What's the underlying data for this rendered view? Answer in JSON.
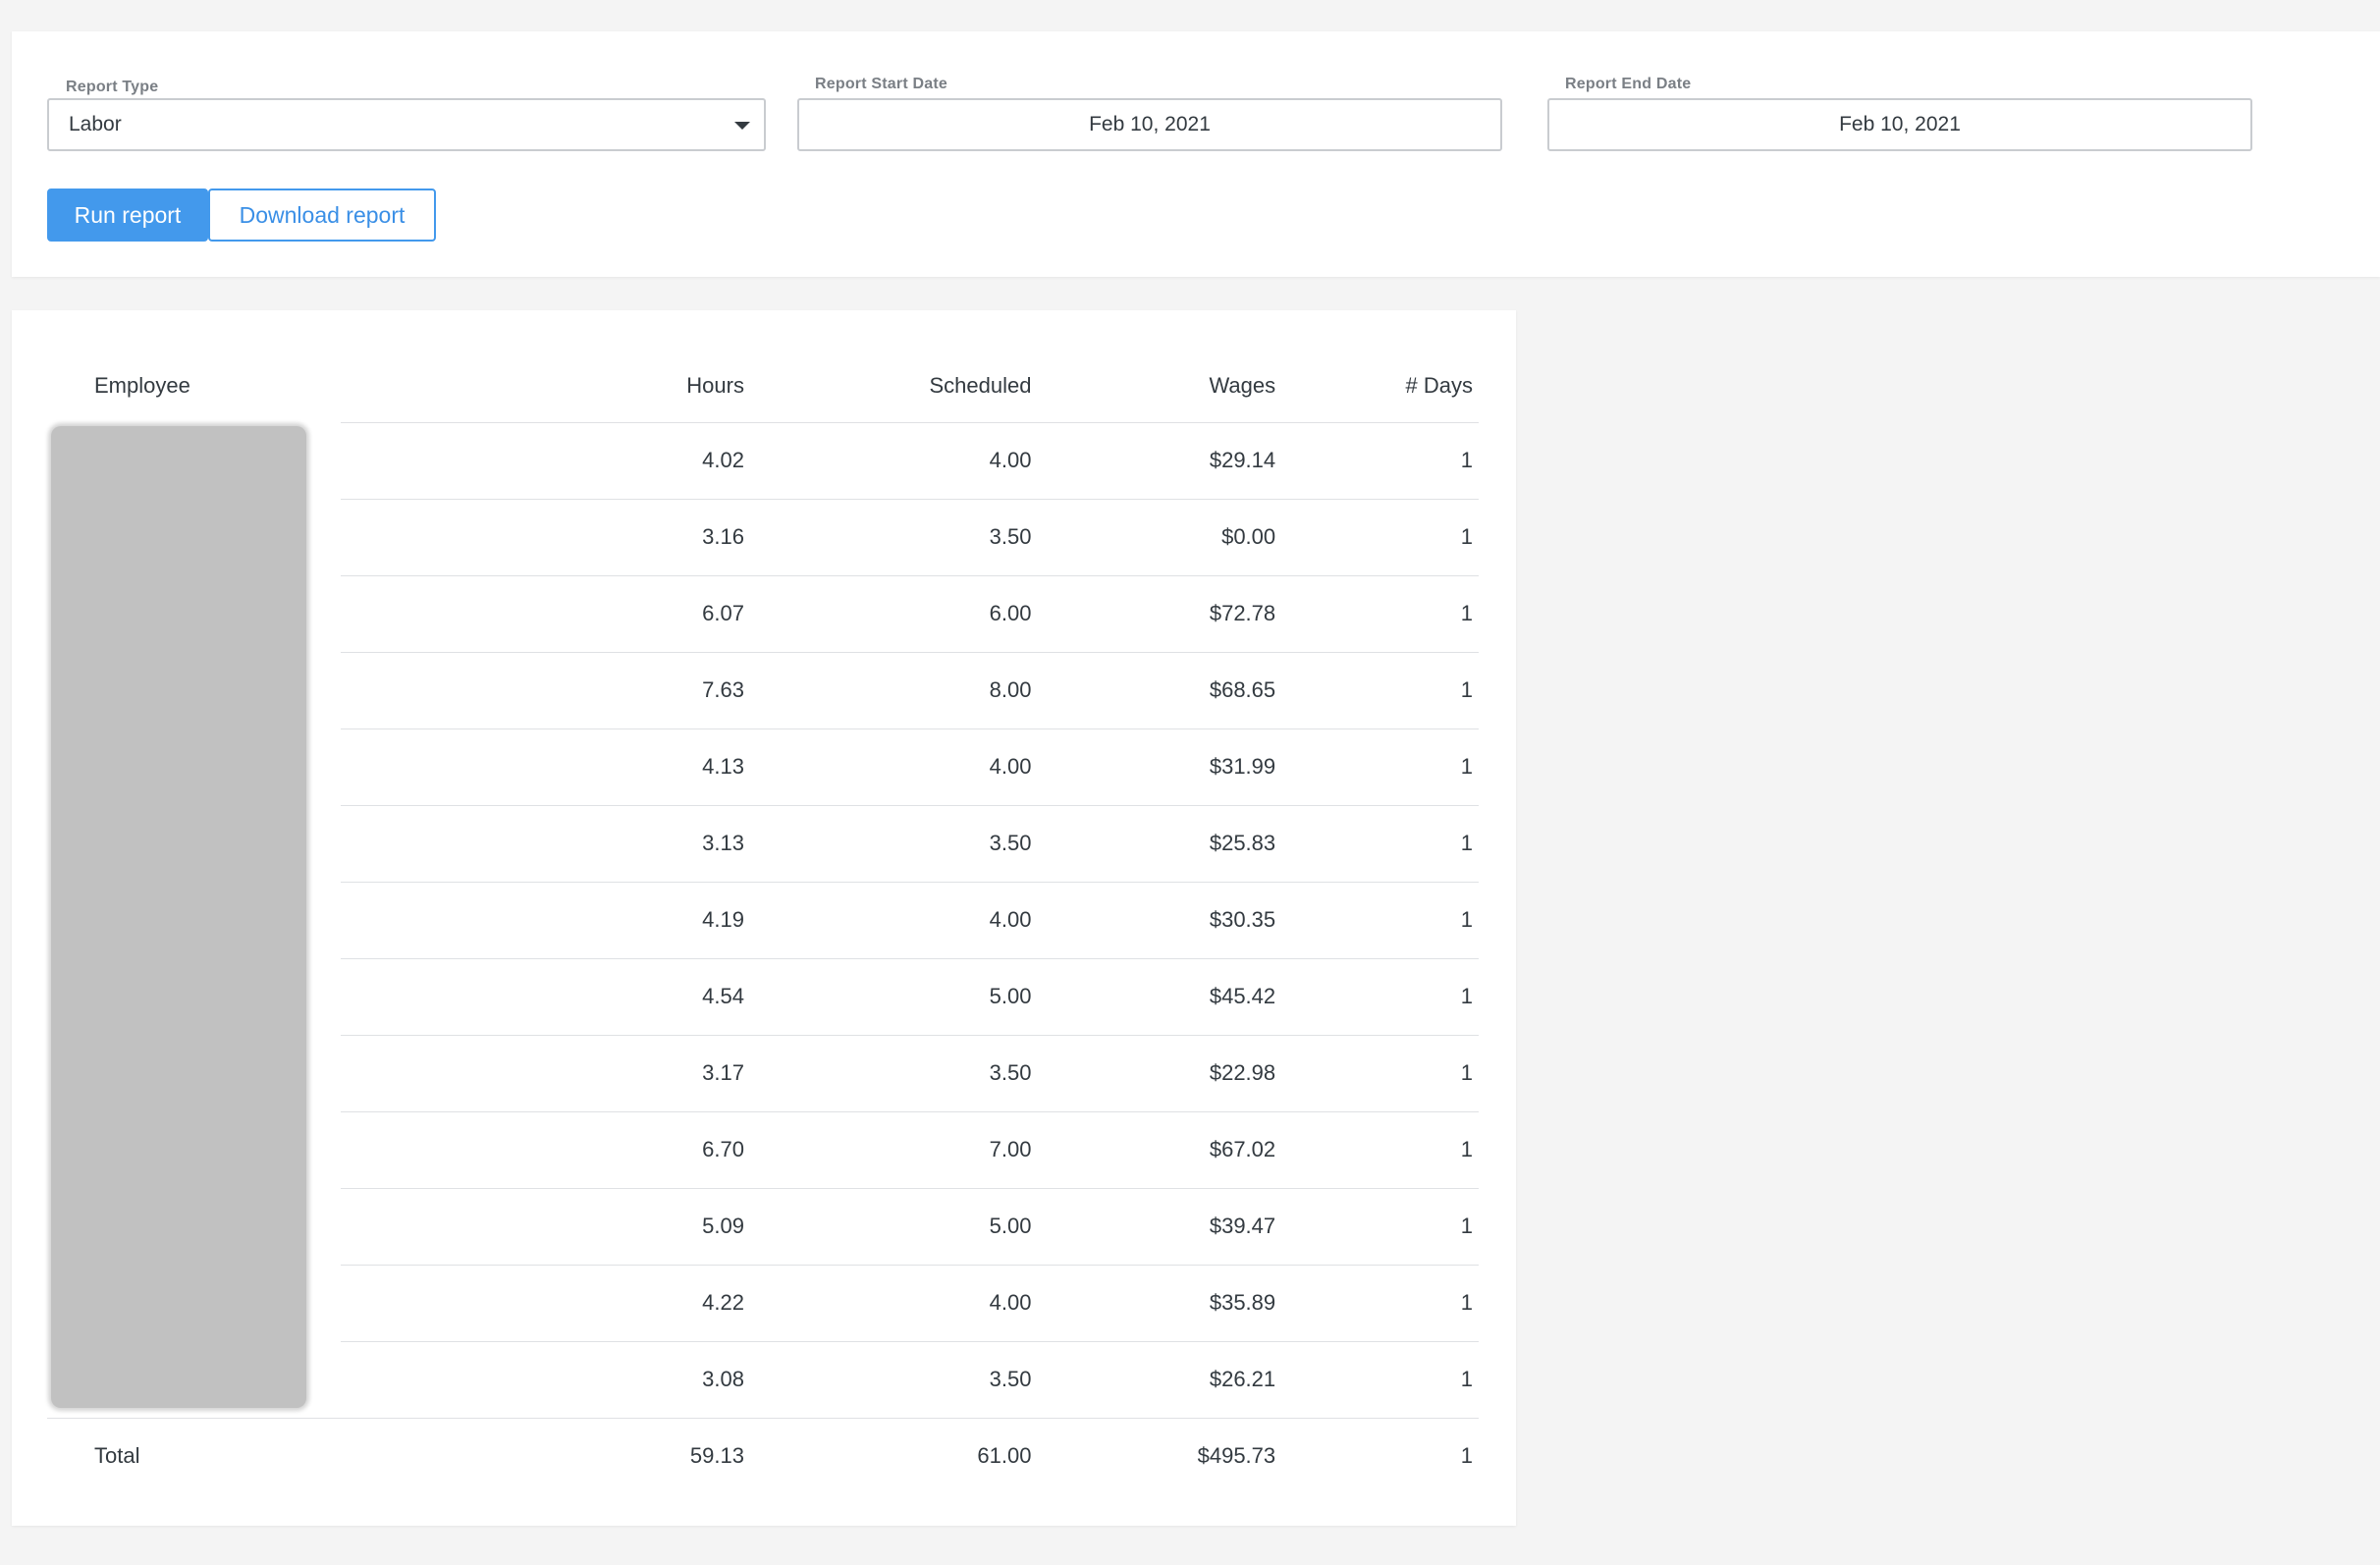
{
  "report_form": {
    "report_type_label": "Report Type",
    "report_type_value": "Labor",
    "start_date_label": "Report Start Date",
    "start_date_value": "Feb 10, 2021",
    "end_date_label": "Report End Date",
    "end_date_value": "Feb 10, 2021",
    "run_button": "Run report",
    "download_button": "Download report"
  },
  "table": {
    "headers": [
      "Employee",
      "Hours",
      "Scheduled",
      "Wages",
      "# Days"
    ],
    "rows": [
      {
        "employee": "",
        "hours": "4.02",
        "scheduled": "4.00",
        "wages": "$29.14",
        "days": "1"
      },
      {
        "employee": "",
        "hours": "3.16",
        "scheduled": "3.50",
        "wages": "$0.00",
        "days": "1"
      },
      {
        "employee": "",
        "hours": "6.07",
        "scheduled": "6.00",
        "wages": "$72.78",
        "days": "1"
      },
      {
        "employee": "",
        "hours": "7.63",
        "scheduled": "8.00",
        "wages": "$68.65",
        "days": "1"
      },
      {
        "employee": "",
        "hours": "4.13",
        "scheduled": "4.00",
        "wages": "$31.99",
        "days": "1"
      },
      {
        "employee": "",
        "hours": "3.13",
        "scheduled": "3.50",
        "wages": "$25.83",
        "days": "1"
      },
      {
        "employee": "",
        "hours": "4.19",
        "scheduled": "4.00",
        "wages": "$30.35",
        "days": "1"
      },
      {
        "employee": "",
        "hours": "4.54",
        "scheduled": "5.00",
        "wages": "$45.42",
        "days": "1"
      },
      {
        "employee": "",
        "hours": "3.17",
        "scheduled": "3.50",
        "wages": "$22.98",
        "days": "1"
      },
      {
        "employee": "",
        "hours": "6.70",
        "scheduled": "7.00",
        "wages": "$67.02",
        "days": "1"
      },
      {
        "employee": "",
        "hours": "5.09",
        "scheduled": "5.00",
        "wages": "$39.47",
        "days": "1"
      },
      {
        "employee": "",
        "hours": "4.22",
        "scheduled": "4.00",
        "wages": "$35.89",
        "days": "1"
      },
      {
        "employee": "",
        "hours": "3.08",
        "scheduled": "3.50",
        "wages": "$26.21",
        "days": "1"
      }
    ],
    "total": {
      "label": "Total",
      "hours": "59.13",
      "scheduled": "61.00",
      "wages": "$495.73",
      "days": "1"
    }
  },
  "icons": {
    "dropdown": "chevron-down-icon"
  },
  "colors": {
    "primary": "#4399ec",
    "background": "#f4f4f4",
    "redaction": "#c1c1c1"
  }
}
